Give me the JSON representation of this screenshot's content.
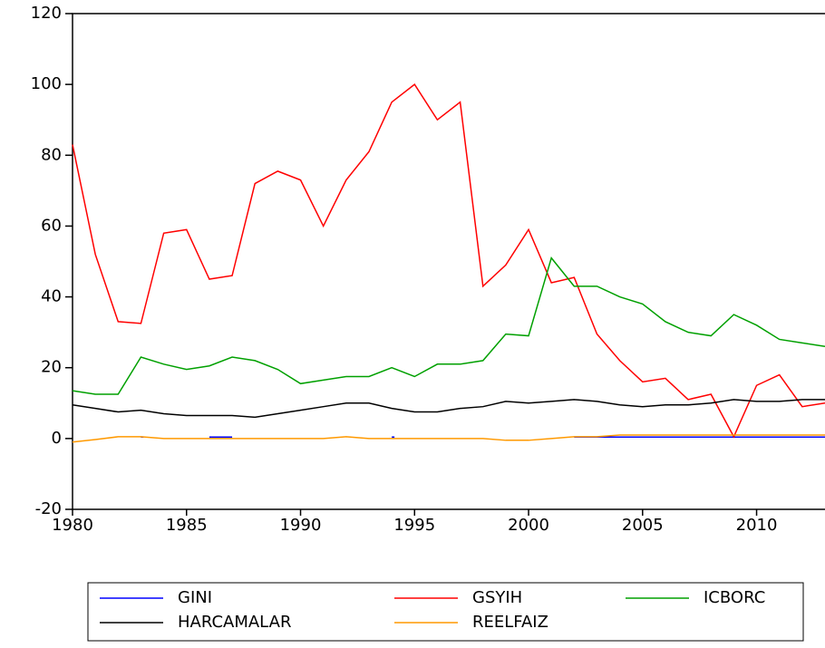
{
  "chart_data": {
    "type": "line",
    "x": [
      1980,
      1981,
      1982,
      1983,
      1984,
      1985,
      1986,
      1987,
      1988,
      1989,
      1990,
      1991,
      1992,
      1993,
      1994,
      1995,
      1996,
      1997,
      1998,
      1999,
      2000,
      2001,
      2002,
      2003,
      2004,
      2005,
      2006,
      2007,
      2008,
      2009,
      2010,
      2011,
      2012,
      2013
    ],
    "xlim": [
      1980,
      2013
    ],
    "xticks": [
      1980,
      1985,
      1990,
      1995,
      2000,
      2005,
      2010
    ],
    "ylim": [
      -20,
      120
    ],
    "yticks": [
      -20,
      0,
      20,
      40,
      60,
      80,
      100,
      120
    ],
    "series": [
      {
        "name": "GINI",
        "color": "#0000ff",
        "values": [
          null,
          null,
          null,
          0.4,
          null,
          null,
          0.4,
          0.4,
          null,
          null,
          null,
          null,
          null,
          null,
          0.4,
          null,
          null,
          null,
          null,
          null,
          null,
          null,
          0.4,
          0.4,
          0.4,
          0.4,
          0.4,
          0.4,
          0.4,
          0.4,
          0.4,
          0.4,
          0.4,
          0.4
        ]
      },
      {
        "name": "GSYIH",
        "color": "#ff0000",
        "values": [
          83,
          52,
          33,
          32.5,
          58,
          59,
          45,
          46,
          72,
          75.5,
          73,
          60,
          73,
          81,
          95,
          100,
          90,
          95,
          43,
          49,
          59,
          44,
          45.5,
          29.5,
          22,
          16,
          17,
          11,
          12.5,
          0.5,
          15,
          18,
          9,
          10
        ]
      },
      {
        "name": "ICBORC",
        "color": "#00a000",
        "values": [
          13.5,
          12.5,
          12.5,
          23,
          21,
          19.5,
          20.5,
          23,
          22,
          19.5,
          15.5,
          16.5,
          17.5,
          17.5,
          20,
          17.5,
          21,
          21,
          22,
          29.5,
          29,
          51,
          43,
          43,
          40,
          38,
          33,
          30,
          29,
          35,
          32,
          28,
          27,
          26
        ]
      },
      {
        "name": "HARCAMALAR",
        "color": "#000000",
        "values": [
          9.5,
          8.5,
          7.5,
          8,
          7,
          6.5,
          6.5,
          6.5,
          6,
          7,
          8,
          9,
          10,
          10,
          8.5,
          7.5,
          7.5,
          8.5,
          9,
          10.5,
          10,
          10.5,
          11,
          10.5,
          9.5,
          9,
          9.5,
          9.5,
          10,
          11,
          10.5,
          10.5,
          11,
          11
        ]
      },
      {
        "name": "REELFAIZ",
        "color": "#ff9900",
        "values": [
          -1,
          -0.3,
          0.5,
          0.5,
          0,
          0,
          0,
          0,
          0,
          0,
          0,
          0,
          0.5,
          0,
          0,
          0,
          0,
          0,
          0,
          -0.5,
          -0.5,
          0,
          0.5,
          0.5,
          1,
          1,
          1,
          1,
          1,
          1,
          1,
          1,
          1,
          1
        ]
      }
    ]
  }
}
